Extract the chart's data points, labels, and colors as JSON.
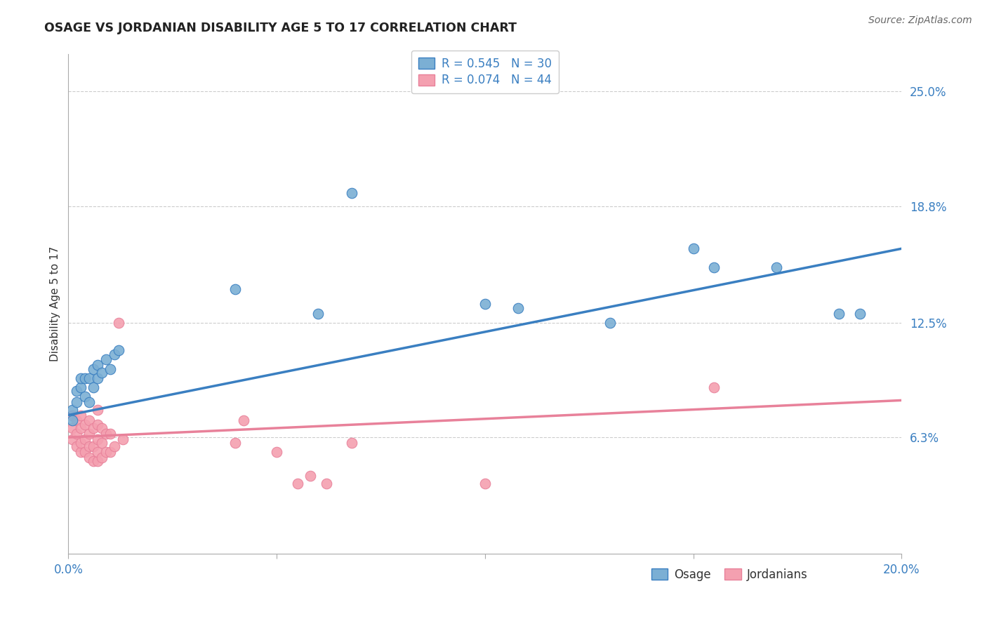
{
  "title": "OSAGE VS JORDANIAN DISABILITY AGE 5 TO 17 CORRELATION CHART",
  "source": "Source: ZipAtlas.com",
  "ylabel": "Disability Age 5 to 17",
  "xlim": [
    0.0,
    0.2
  ],
  "ylim": [
    0.0,
    0.27
  ],
  "xticks": [
    0.0,
    0.05,
    0.1,
    0.15,
    0.2
  ],
  "xtick_labels": [
    "0.0%",
    "",
    "",
    "",
    "20.0%"
  ],
  "ytick_labels_right": [
    "6.3%",
    "12.5%",
    "18.8%",
    "25.0%"
  ],
  "yticks_right": [
    0.063,
    0.125,
    0.188,
    0.25
  ],
  "legend_r_blue": "R = 0.545",
  "legend_n_blue": "N = 30",
  "legend_r_pink": "R = 0.074",
  "legend_n_pink": "N = 44",
  "legend_label_blue": "Osage",
  "legend_label_pink": "Jordanians",
  "blue_color": "#7bafd4",
  "pink_color": "#f4a0b0",
  "blue_line_color": "#3a7fc1",
  "pink_line_color": "#e8819a",
  "legend_text_color": "#3a7fc1",
  "title_color": "#222222",
  "background_color": "#ffffff",
  "grid_color": "#cccccc",
  "osage_x": [
    0.001,
    0.001,
    0.002,
    0.002,
    0.003,
    0.003,
    0.004,
    0.004,
    0.005,
    0.005,
    0.006,
    0.006,
    0.007,
    0.007,
    0.008,
    0.009,
    0.01,
    0.011,
    0.012,
    0.04,
    0.06,
    0.068,
    0.1,
    0.108,
    0.13,
    0.15,
    0.155,
    0.17,
    0.185,
    0.19
  ],
  "osage_y": [
    0.072,
    0.078,
    0.082,
    0.088,
    0.09,
    0.095,
    0.085,
    0.095,
    0.082,
    0.095,
    0.09,
    0.1,
    0.095,
    0.102,
    0.098,
    0.105,
    0.1,
    0.108,
    0.11,
    0.143,
    0.13,
    0.195,
    0.135,
    0.133,
    0.125,
    0.165,
    0.155,
    0.155,
    0.13,
    0.13
  ],
  "jordan_x": [
    0.001,
    0.001,
    0.001,
    0.002,
    0.002,
    0.002,
    0.003,
    0.003,
    0.003,
    0.003,
    0.004,
    0.004,
    0.004,
    0.005,
    0.005,
    0.005,
    0.005,
    0.006,
    0.006,
    0.006,
    0.007,
    0.007,
    0.007,
    0.007,
    0.007,
    0.008,
    0.008,
    0.008,
    0.009,
    0.009,
    0.01,
    0.01,
    0.011,
    0.012,
    0.013,
    0.04,
    0.042,
    0.05,
    0.055,
    0.058,
    0.062,
    0.068,
    0.1,
    0.155
  ],
  "jordan_y": [
    0.062,
    0.068,
    0.075,
    0.058,
    0.065,
    0.072,
    0.055,
    0.06,
    0.068,
    0.075,
    0.055,
    0.062,
    0.07,
    0.052,
    0.058,
    0.065,
    0.072,
    0.05,
    0.058,
    0.068,
    0.05,
    0.055,
    0.062,
    0.07,
    0.078,
    0.052,
    0.06,
    0.068,
    0.055,
    0.065,
    0.055,
    0.065,
    0.058,
    0.125,
    0.062,
    0.06,
    0.072,
    0.055,
    0.038,
    0.042,
    0.038,
    0.06,
    0.038,
    0.09
  ],
  "blue_trend_x": [
    0.0,
    0.2
  ],
  "blue_trend_y": [
    0.075,
    0.165
  ],
  "pink_trend_x": [
    0.0,
    0.2
  ],
  "pink_trend_y": [
    0.063,
    0.083
  ]
}
